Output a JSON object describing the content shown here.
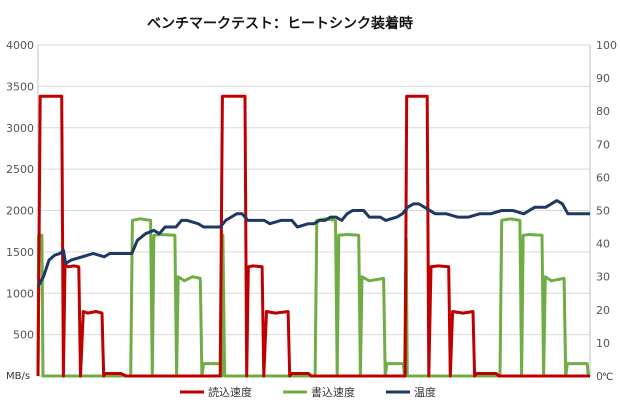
{
  "chart_data": {
    "type": "line",
    "title": "ベンチマークテスト：ヒートシンク装着時",
    "ylabel_left_unit": "MB/s",
    "ylabel_right_unit": "℃",
    "ylim_left": [
      0,
      4000
    ],
    "ylim_right": [
      0,
      100
    ],
    "left_ticks": [
      500,
      1000,
      1500,
      2000,
      2500,
      3000,
      3500,
      4000
    ],
    "right_ticks": [
      0,
      10,
      20,
      30,
      40,
      50,
      60,
      70,
      80,
      90,
      100
    ],
    "xlim": [
      0,
      100
    ],
    "grid": "horizontal",
    "legend_position": "bottom",
    "colors": {
      "read": "#c00000",
      "write": "#70ad47",
      "temp": "#1f3864",
      "grid": "#d9d9d9",
      "axis": "#bfbfbf"
    },
    "series": [
      {
        "name": "読込速度",
        "axis": "left",
        "color": "#c00000",
        "points": [
          [
            0,
            0
          ],
          [
            0.4,
            3380
          ],
          [
            1,
            3380
          ],
          [
            2,
            3380
          ],
          [
            3,
            3380
          ],
          [
            4,
            3380
          ],
          [
            4.3,
            3380
          ],
          [
            4.6,
            0
          ],
          [
            4.9,
            1340
          ],
          [
            5.5,
            1320
          ],
          [
            6.5,
            1330
          ],
          [
            7.4,
            1320
          ],
          [
            7.7,
            0
          ],
          [
            8.2,
            780
          ],
          [
            9,
            760
          ],
          [
            10.5,
            780
          ],
          [
            11.6,
            760
          ],
          [
            11.9,
            0
          ],
          [
            12.2,
            30
          ],
          [
            15,
            30
          ],
          [
            16,
            0
          ],
          [
            33,
            0
          ],
          [
            33.4,
            3380
          ],
          [
            34,
            3380
          ],
          [
            36,
            3380
          ],
          [
            37.5,
            3380
          ],
          [
            37.8,
            0
          ],
          [
            38.1,
            1320
          ],
          [
            39,
            1330
          ],
          [
            40.6,
            1320
          ],
          [
            40.9,
            0
          ],
          [
            41.4,
            780
          ],
          [
            43,
            760
          ],
          [
            45.3,
            780
          ],
          [
            45.6,
            0
          ],
          [
            46,
            30
          ],
          [
            49,
            30
          ],
          [
            49.5,
            0
          ],
          [
            66.5,
            0
          ],
          [
            66.8,
            3380
          ],
          [
            68,
            3380
          ],
          [
            70,
            3380
          ],
          [
            70.5,
            3380
          ],
          [
            70.8,
            0
          ],
          [
            71.2,
            1320
          ],
          [
            72.5,
            1330
          ],
          [
            74.4,
            1320
          ],
          [
            74.7,
            0
          ],
          [
            75.1,
            780
          ],
          [
            77,
            760
          ],
          [
            78.8,
            780
          ],
          [
            79.1,
            0
          ],
          [
            79.5,
            30
          ],
          [
            83,
            30
          ],
          [
            83.5,
            0
          ],
          [
            100,
            0
          ]
        ]
      },
      {
        "name": "書込速度",
        "axis": "left",
        "color": "#70ad47",
        "points": [
          [
            0,
            0
          ],
          [
            0.1,
            1700
          ],
          [
            0.7,
            1700
          ],
          [
            0.9,
            0
          ],
          [
            16.8,
            0
          ],
          [
            17.1,
            1880
          ],
          [
            18.5,
            1900
          ],
          [
            20.4,
            1880
          ],
          [
            20.7,
            0
          ],
          [
            21,
            1700
          ],
          [
            22,
            1710
          ],
          [
            24.8,
            1700
          ],
          [
            25.1,
            0
          ],
          [
            25.4,
            1200
          ],
          [
            26.5,
            1150
          ],
          [
            28,
            1200
          ],
          [
            29.4,
            1180
          ],
          [
            29.7,
            0
          ],
          [
            30,
            150
          ],
          [
            31.5,
            150
          ],
          [
            33,
            150
          ],
          [
            33.3,
            0
          ],
          [
            33.5,
            1700
          ],
          [
            33.8,
            0
          ],
          [
            50.2,
            0
          ],
          [
            50.5,
            1880
          ],
          [
            52,
            1900
          ],
          [
            53.9,
            1880
          ],
          [
            54.2,
            0
          ],
          [
            54.5,
            1700
          ],
          [
            56,
            1710
          ],
          [
            58.1,
            1700
          ],
          [
            58.4,
            0
          ],
          [
            58.7,
            1200
          ],
          [
            60,
            1150
          ],
          [
            62.6,
            1180
          ],
          [
            62.9,
            0
          ],
          [
            63.2,
            150
          ],
          [
            65,
            150
          ],
          [
            66.2,
            150
          ],
          [
            66.4,
            0
          ],
          [
            66.7,
            1650
          ],
          [
            66.9,
            0
          ],
          [
            83.7,
            0
          ],
          [
            84,
            1880
          ],
          [
            85.5,
            1900
          ],
          [
            87.3,
            1880
          ],
          [
            87.6,
            0
          ],
          [
            87.9,
            1700
          ],
          [
            89,
            1710
          ],
          [
            91.3,
            1700
          ],
          [
            91.6,
            0
          ],
          [
            91.9,
            1200
          ],
          [
            93,
            1150
          ],
          [
            95.3,
            1180
          ],
          [
            95.6,
            0
          ],
          [
            95.9,
            150
          ],
          [
            98,
            150
          ],
          [
            99.5,
            150
          ],
          [
            99.7,
            0
          ]
        ]
      },
      {
        "name": "温度",
        "axis": "right",
        "color": "#1f3864",
        "points": [
          [
            0,
            27
          ],
          [
            1,
            30
          ],
          [
            2,
            35
          ],
          [
            3,
            36.5
          ],
          [
            4,
            37
          ],
          [
            4.6,
            38
          ],
          [
            5,
            34
          ],
          [
            6,
            35
          ],
          [
            8,
            36
          ],
          [
            10,
            37
          ],
          [
            12,
            36
          ],
          [
            13,
            37
          ],
          [
            16,
            37
          ],
          [
            17,
            37
          ],
          [
            18,
            41
          ],
          [
            19.5,
            43
          ],
          [
            21,
            44
          ],
          [
            22,
            43
          ],
          [
            23,
            45
          ],
          [
            25,
            45
          ],
          [
            26,
            47
          ],
          [
            27,
            47
          ],
          [
            29,
            46
          ],
          [
            30,
            45
          ],
          [
            33,
            45
          ],
          [
            34,
            47
          ],
          [
            35,
            48
          ],
          [
            36,
            49
          ],
          [
            37,
            49
          ],
          [
            38,
            47
          ],
          [
            41,
            47
          ],
          [
            42,
            46
          ],
          [
            44,
            47
          ],
          [
            46,
            47
          ],
          [
            47,
            45
          ],
          [
            49,
            46
          ],
          [
            50,
            46
          ],
          [
            51,
            47
          ],
          [
            52,
            47
          ],
          [
            53,
            48
          ],
          [
            54,
            48
          ],
          [
            55,
            47
          ],
          [
            56,
            49
          ],
          [
            57,
            50
          ],
          [
            59,
            50
          ],
          [
            60,
            48
          ],
          [
            62,
            48
          ],
          [
            63,
            47
          ],
          [
            65,
            48
          ],
          [
            66,
            49
          ],
          [
            67,
            51
          ],
          [
            68,
            52
          ],
          [
            69,
            52
          ],
          [
            70,
            51
          ],
          [
            72,
            49
          ],
          [
            74,
            49
          ],
          [
            76,
            48
          ],
          [
            78,
            48
          ],
          [
            80,
            49
          ],
          [
            82,
            49
          ],
          [
            84,
            50
          ],
          [
            86,
            50
          ],
          [
            88,
            49
          ],
          [
            90,
            51
          ],
          [
            92,
            51
          ],
          [
            94,
            53
          ],
          [
            95,
            52
          ],
          [
            96,
            49
          ],
          [
            98,
            49
          ],
          [
            100,
            49
          ]
        ]
      }
    ]
  }
}
